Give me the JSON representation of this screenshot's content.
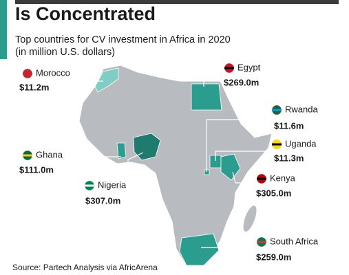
{
  "header": {
    "title": "Is Concentrated",
    "subtitle": "Top countries for CV investment in Africa in 2020",
    "subtitle_2": "(in million U.S. dollars)"
  },
  "countries": [
    {
      "name": "Morocco",
      "label": "$11.2m"
    },
    {
      "name": "Egypt",
      "label": "$269.0m"
    },
    {
      "name": "Rwanda",
      "label": "$11.6m"
    },
    {
      "name": "Uganda",
      "label": "$11.3m"
    },
    {
      "name": "Ghana",
      "label": "$111.0m"
    },
    {
      "name": "Nigeria",
      "label": "$307.0m"
    },
    {
      "name": "Kenya",
      "label": "$305.0m"
    },
    {
      "name": "South Africa",
      "label": "$259.0m"
    }
  ],
  "source": "Source: Partech Analysis via AfricArena"
}
